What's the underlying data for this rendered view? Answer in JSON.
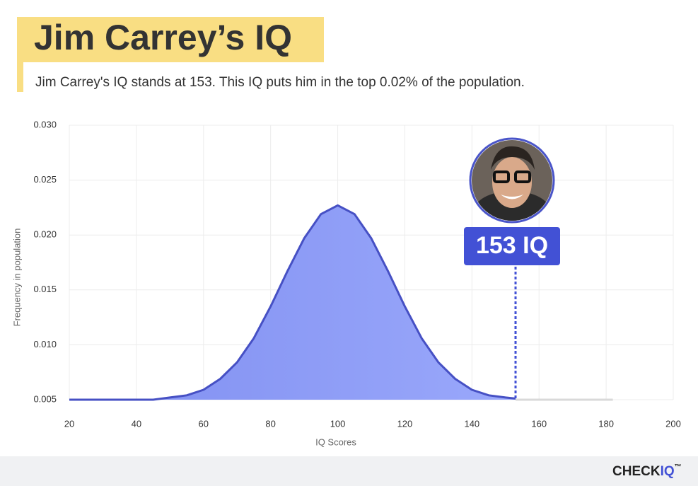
{
  "chart_data": {
    "type": "area",
    "title": "Jim Carrey’s IQ",
    "subtitle": "Jim Carrey's IQ stands at 153. This IQ puts him in the top 0.02% of the population.",
    "xlabel": "IQ Scores",
    "ylabel": "Frequency in population",
    "xlim": [
      20,
      200
    ],
    "xticks": [
      20,
      40,
      60,
      80,
      100,
      120,
      140,
      160,
      180,
      200
    ],
    "ylim": [
      0.005,
      0.03
    ],
    "yticks": [
      0.005,
      {
        "value": 0.01,
        "label": "0.010"
      },
      0.015,
      {
        "value": 0.02,
        "label": "0.020"
      },
      0.025,
      {
        "value": 0.03,
        "label": "0.030"
      }
    ],
    "grid": true,
    "series": [
      {
        "color": "#4650c4",
        "fill": "#8e9cf5",
        "x": [
          20,
          25,
          30,
          35,
          40,
          45,
          50,
          55,
          60,
          65,
          70,
          75,
          80,
          85,
          90,
          95,
          100,
          105,
          110,
          115,
          120,
          125,
          130,
          135,
          140,
          145,
          150,
          153
        ],
        "values": [
          0.005,
          0.005,
          0.005,
          0.005,
          0.005,
          0.005,
          0.0052,
          0.0054,
          0.0059,
          0.0069,
          0.0084,
          0.0106,
          0.0135,
          0.0167,
          0.0197,
          0.0219,
          0.0227,
          0.0219,
          0.0197,
          0.0167,
          0.0135,
          0.0106,
          0.0084,
          0.0069,
          0.0059,
          0.0054,
          0.0052,
          0.0051
        ]
      },
      {
        "color": "#d9d9d9",
        "x": [
          153,
          182
        ],
        "values": [
          0.005,
          0.005
        ]
      }
    ],
    "annotation": {
      "x": 153,
      "label": "153 IQ"
    }
  },
  "footer": {
    "brand": "CHECK",
    "brand_accent": "IQ",
    "trademark": "™"
  }
}
